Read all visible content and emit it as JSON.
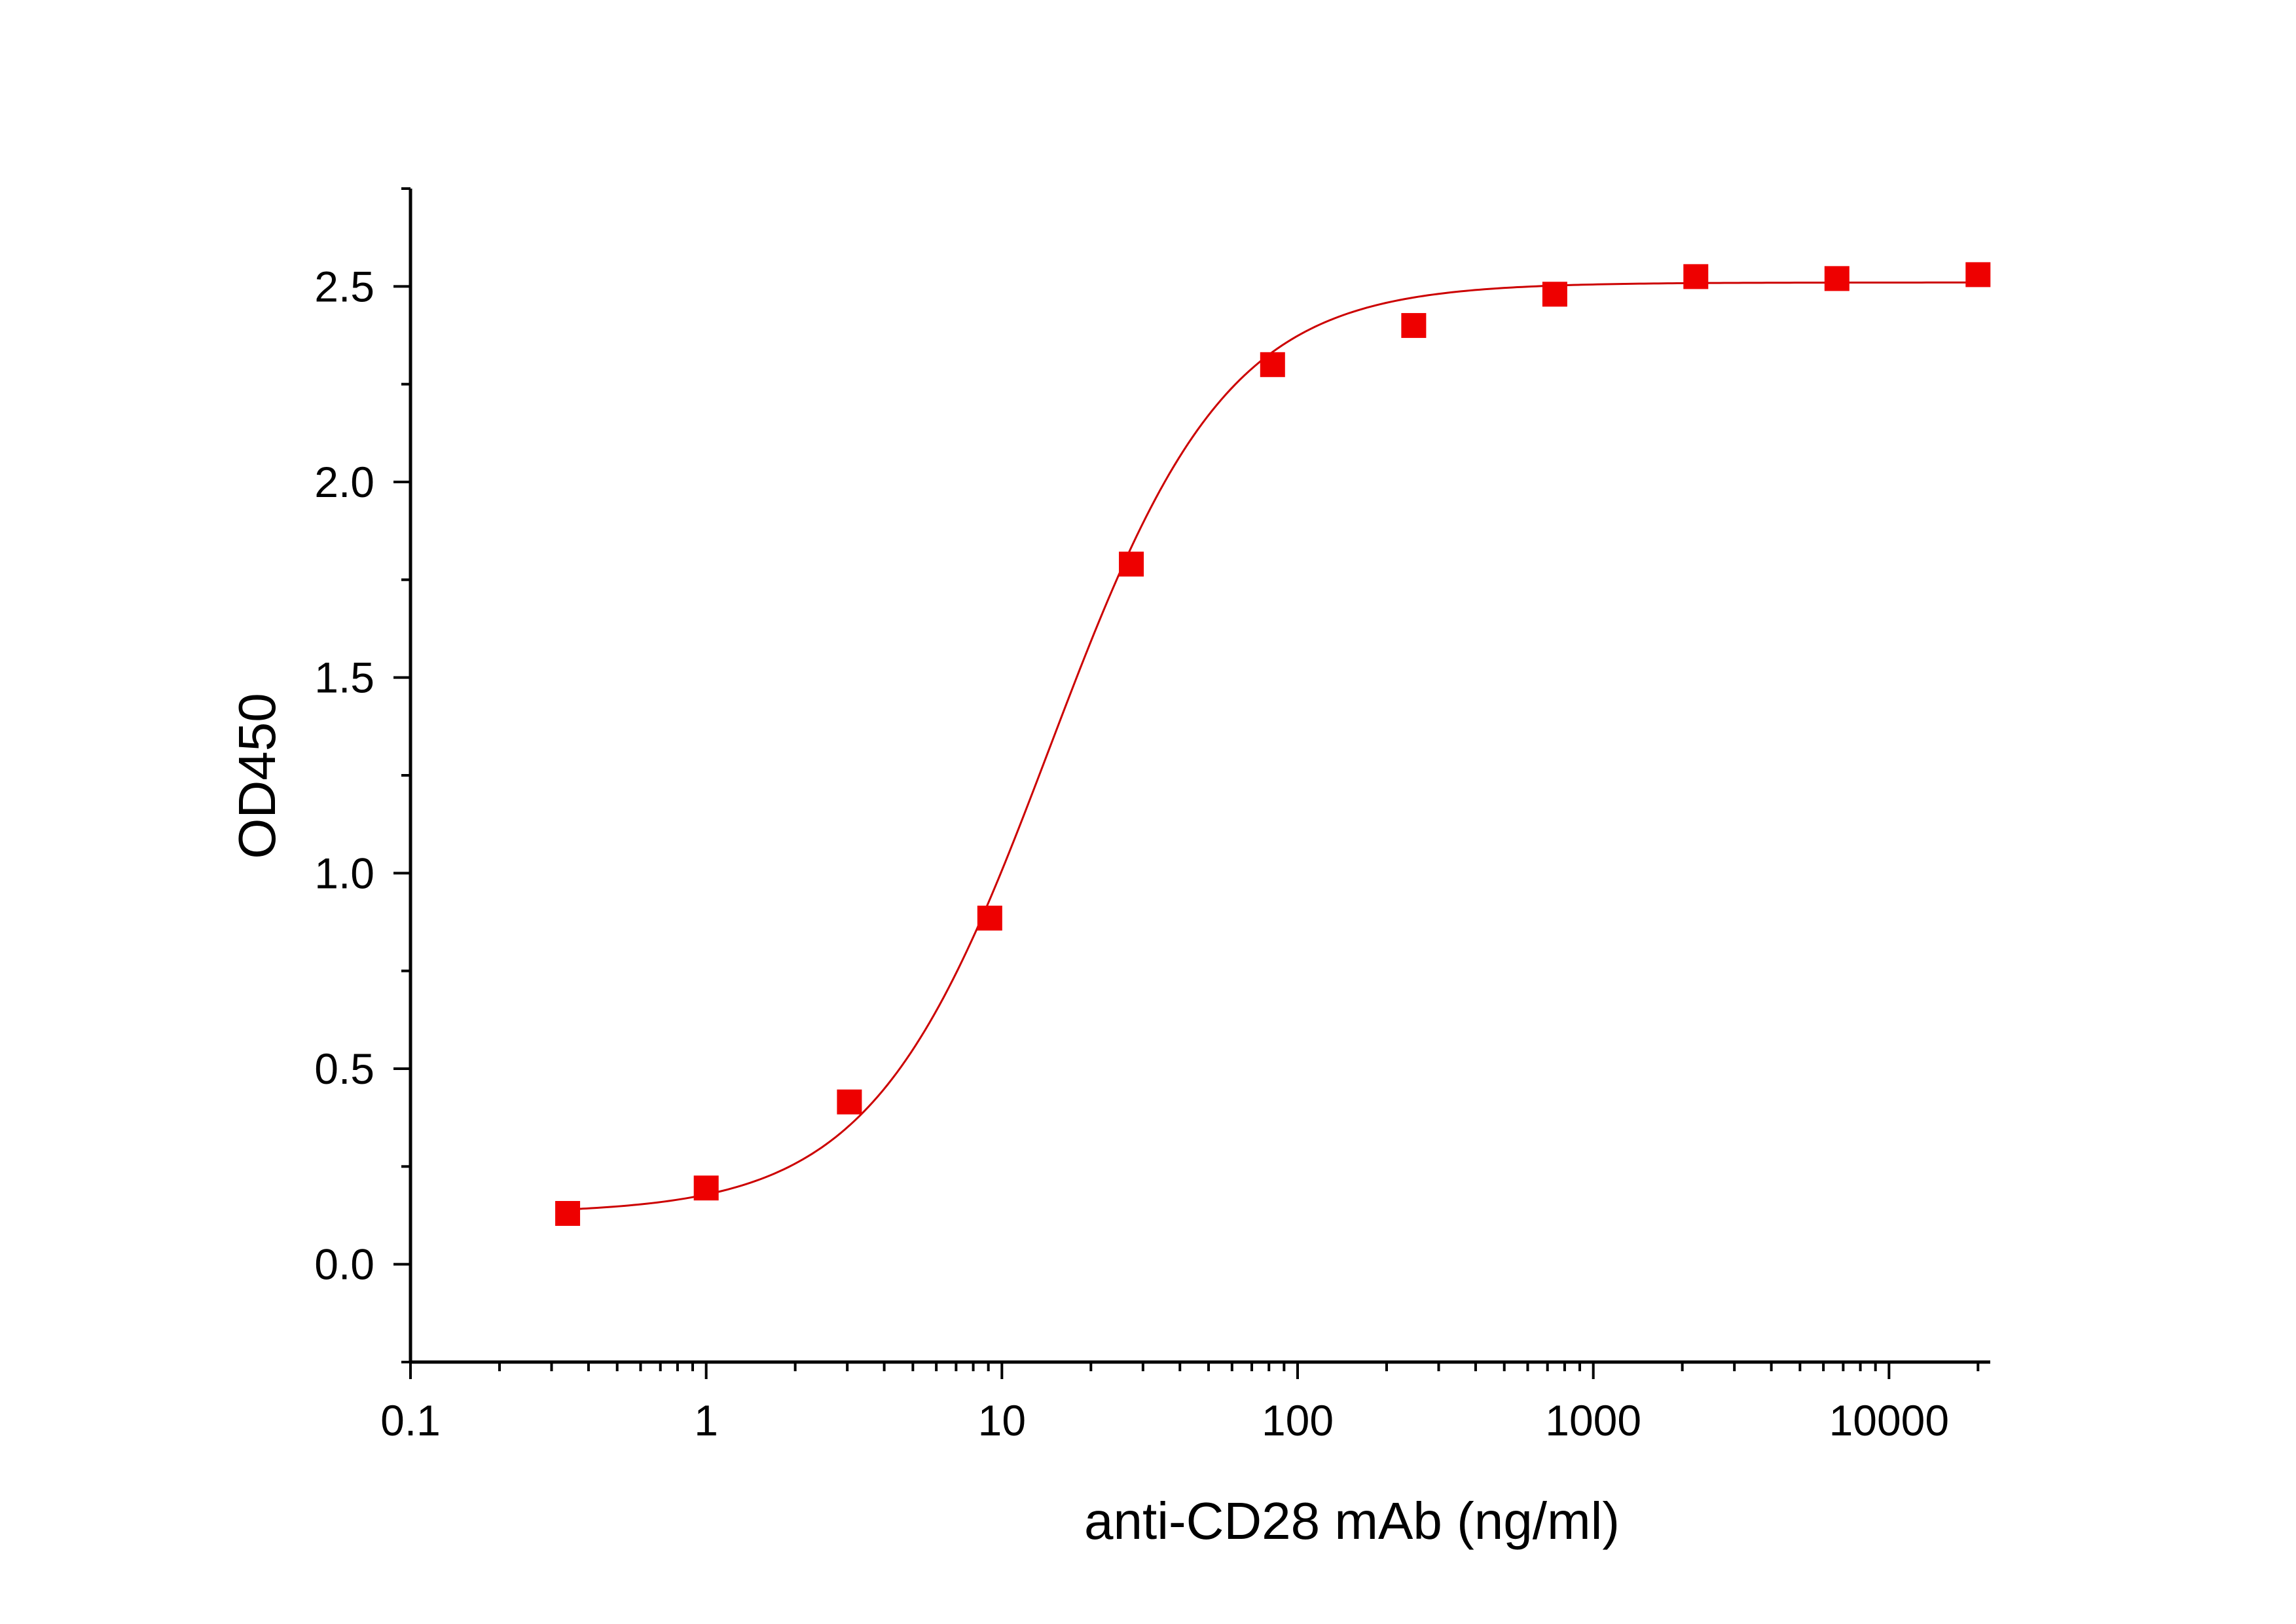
{
  "chart_data": {
    "type": "scatter",
    "title": "",
    "xlabel": "anti-CD28 mAb (ng/ml)",
    "ylabel": "OD450",
    "x_scale": "log10",
    "xlim": [
      0.1,
      22000
    ],
    "ylim": [
      -0.25,
      2.75
    ],
    "x_tick_values": [
      0.1,
      1,
      10,
      100,
      1000,
      10000
    ],
    "x_tick_labels": [
      "0.1",
      "1",
      "10",
      "100",
      "1000",
      "10000"
    ],
    "y_tick_values": [
      0.0,
      0.5,
      1.0,
      1.5,
      2.0,
      2.5
    ],
    "y_tick_labels": [
      "0.0",
      "0.5",
      "1.0",
      "1.5",
      "2.0",
      "2.5"
    ],
    "grid": false,
    "legend": "none",
    "series": [
      {
        "name": "anti-CD28 mAb",
        "marker": "square",
        "color": "#ee0000",
        "x": [
          0.34,
          1.0,
          3.05,
          9.1,
          27.4,
          82.3,
          247,
          741,
          2222,
          6667,
          20000
        ],
        "y": [
          0.13,
          0.195,
          0.415,
          0.885,
          1.79,
          2.3,
          2.4,
          2.48,
          2.525,
          2.52,
          2.53
        ]
      }
    ],
    "fit": {
      "name": "4PL fit",
      "model": "four-parameter logistic",
      "color": "#cc0000",
      "bottom": 0.13,
      "top": 2.51,
      "ec50": 14.5,
      "hill": 1.45
    }
  }
}
